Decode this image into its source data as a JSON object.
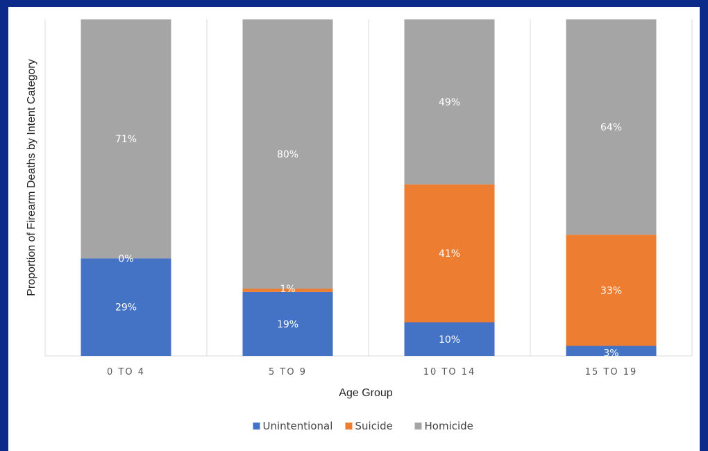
{
  "colors": {
    "background": "#0b2a8a",
    "Unintentional": "#4472c4",
    "Suicide": "#ed7d31",
    "Homicide": "#a5a5a5"
  },
  "chart_data": {
    "type": "bar",
    "stacked": true,
    "title": "",
    "xlabel": "Age Group",
    "ylabel": "Proportion of Firearm Deaths by Intent Category",
    "ylim": [
      0,
      100
    ],
    "grid": "vertical separators",
    "legend_position": "bottom",
    "categories": [
      "0 TO 4",
      "5 TO 9",
      "10 TO 14",
      "15 TO 19"
    ],
    "series": [
      {
        "name": "Unintentional",
        "values": [
          29,
          19,
          10,
          3
        ],
        "labels": [
          "29%",
          "19%",
          "10%",
          "3%"
        ]
      },
      {
        "name": "Suicide",
        "values": [
          0,
          1,
          41,
          33
        ],
        "labels": [
          "0%",
          "1%",
          "41%",
          "33%"
        ]
      },
      {
        "name": "Homicide",
        "values": [
          71,
          80,
          49,
          64
        ],
        "labels": [
          "71%",
          "80%",
          "49%",
          "64%"
        ]
      }
    ]
  }
}
